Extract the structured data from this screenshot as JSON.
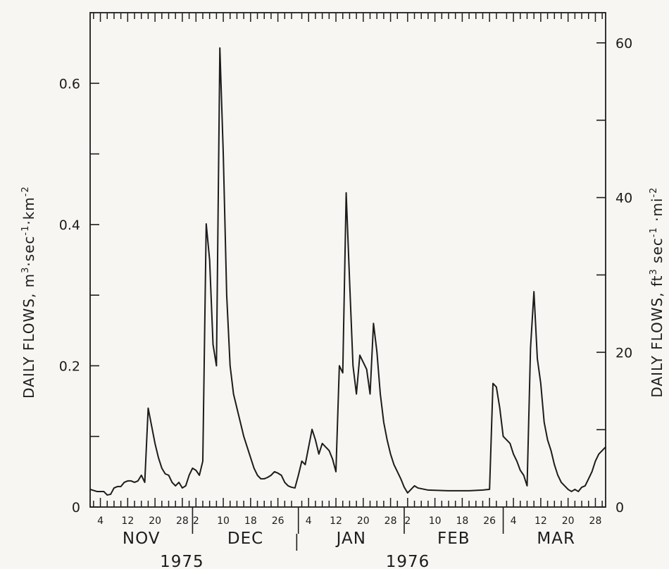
{
  "chart_data": {
    "type": "line",
    "title": "",
    "ylabel": "DAILY FLOWS, m³·sec⁻¹·km⁻²",
    "ylabel_parts": {
      "main": "DAILY FLOWS, m",
      "sup1": "3",
      "mid": "·sec",
      "sup2": "-1",
      "mid2": "·km",
      "sup3": "-2"
    },
    "y2label": "DAILY FLOWS, ft³·sec⁻¹·mi⁻²",
    "y2label_parts": {
      "main": "DAILY FLOWS, ft",
      "sup1": "3",
      "mid": " sec",
      "sup2": "-1",
      "mid2": " ·mi",
      "sup3": "-2"
    },
    "ylim": [
      0,
      0.7
    ],
    "y2lim": [
      0,
      63.9
    ],
    "y_ticks": [
      0,
      0.2,
      0.4,
      0.6
    ],
    "y_tick_labels": [
      "0",
      "0.2",
      "0.4",
      "0.6"
    ],
    "y2_ticks": [
      0,
      20,
      40,
      60
    ],
    "y2_tick_labels": [
      "0",
      "20",
      "40",
      "60"
    ],
    "xlim": [
      "1975-11-01",
      "1976-03-31"
    ],
    "months": [
      {
        "label": "NOV",
        "start": "1975-11-01",
        "end": "1975-11-30",
        "day_ticks": [
          4,
          12,
          20,
          28
        ]
      },
      {
        "label": "DEC",
        "start": "1975-12-01",
        "end": "1975-12-31",
        "day_ticks": [
          2,
          10,
          18,
          26
        ]
      },
      {
        "label": "JAN",
        "start": "1976-01-01",
        "end": "1976-01-31",
        "day_ticks": [
          4,
          12,
          20,
          28
        ]
      },
      {
        "label": "FEB",
        "start": "1976-02-01",
        "end": "1976-02-29",
        "day_ticks": [
          2,
          10,
          18,
          26
        ]
      },
      {
        "label": "MAR",
        "start": "1976-03-01",
        "end": "1976-03-31",
        "day_ticks": [
          4,
          12,
          20,
          28
        ]
      }
    ],
    "years": [
      {
        "label": "1975",
        "under": "1975-12-01"
      },
      {
        "label": "1976",
        "under": "1976-02-01"
      }
    ],
    "grid": false,
    "series": [
      {
        "color": "#1c1c1c",
        "points": [
          [
            "1975-11-01",
            0.025
          ],
          [
            "1975-11-03",
            0.022
          ],
          [
            "1975-11-05",
            0.022
          ],
          [
            "1975-11-06",
            0.017
          ],
          [
            "1975-11-07",
            0.018
          ],
          [
            "1975-11-08",
            0.027
          ],
          [
            "1975-11-09",
            0.029
          ],
          [
            "1975-11-10",
            0.029
          ],
          [
            "1975-11-11",
            0.035
          ],
          [
            "1975-11-12",
            0.037
          ],
          [
            "1975-11-13",
            0.037
          ],
          [
            "1975-11-14",
            0.035
          ],
          [
            "1975-11-15",
            0.037
          ],
          [
            "1975-11-16",
            0.045
          ],
          [
            "1975-11-17",
            0.035
          ],
          [
            "1975-11-18",
            0.14
          ],
          [
            "1975-11-19",
            0.115
          ],
          [
            "1975-11-20",
            0.09
          ],
          [
            "1975-11-21",
            0.07
          ],
          [
            "1975-11-22",
            0.055
          ],
          [
            "1975-11-23",
            0.047
          ],
          [
            "1975-11-24",
            0.045
          ],
          [
            "1975-11-25",
            0.035
          ],
          [
            "1975-11-26",
            0.03
          ],
          [
            "1975-11-27",
            0.035
          ],
          [
            "1975-11-28",
            0.027
          ],
          [
            "1975-11-29",
            0.03
          ],
          [
            "1975-11-30",
            0.045
          ],
          [
            "1975-12-01",
            0.055
          ],
          [
            "1975-12-02",
            0.052
          ],
          [
            "1975-12-03",
            0.045
          ],
          [
            "1975-12-04",
            0.065
          ],
          [
            "1975-12-05",
            0.401
          ],
          [
            "1975-12-06",
            0.35
          ],
          [
            "1975-12-07",
            0.23
          ],
          [
            "1975-12-08",
            0.2
          ],
          [
            "1975-12-09",
            0.65
          ],
          [
            "1975-12-10",
            0.5
          ],
          [
            "1975-12-11",
            0.3
          ],
          [
            "1975-12-12",
            0.2
          ],
          [
            "1975-12-13",
            0.16
          ],
          [
            "1975-12-14",
            0.14
          ],
          [
            "1975-12-15",
            0.12
          ],
          [
            "1975-12-16",
            0.1
          ],
          [
            "1975-12-17",
            0.085
          ],
          [
            "1975-12-18",
            0.07
          ],
          [
            "1975-12-19",
            0.055
          ],
          [
            "1975-12-20",
            0.045
          ],
          [
            "1975-12-21",
            0.04
          ],
          [
            "1975-12-22",
            0.04
          ],
          [
            "1975-12-23",
            0.042
          ],
          [
            "1975-12-24",
            0.045
          ],
          [
            "1975-12-25",
            0.05
          ],
          [
            "1975-12-26",
            0.048
          ],
          [
            "1975-12-27",
            0.045
          ],
          [
            "1975-12-28",
            0.035
          ],
          [
            "1975-12-29",
            0.03
          ],
          [
            "1975-12-30",
            0.028
          ],
          [
            "1975-12-31",
            0.027
          ],
          [
            "1976-01-01",
            0.045
          ],
          [
            "1976-01-02",
            0.065
          ],
          [
            "1976-01-03",
            0.06
          ],
          [
            "1976-01-04",
            0.085
          ],
          [
            "1976-01-05",
            0.11
          ],
          [
            "1976-01-06",
            0.095
          ],
          [
            "1976-01-07",
            0.075
          ],
          [
            "1976-01-08",
            0.09
          ],
          [
            "1976-01-09",
            0.085
          ],
          [
            "1976-01-10",
            0.08
          ],
          [
            "1976-01-11",
            0.068
          ],
          [
            "1976-01-12",
            0.05
          ],
          [
            "1976-01-13",
            0.2
          ],
          [
            "1976-01-14",
            0.19
          ],
          [
            "1976-01-15",
            0.445
          ],
          [
            "1976-01-16",
            0.32
          ],
          [
            "1976-01-17",
            0.2
          ],
          [
            "1976-01-18",
            0.16
          ],
          [
            "1976-01-19",
            0.215
          ],
          [
            "1976-01-20",
            0.205
          ],
          [
            "1976-01-21",
            0.195
          ],
          [
            "1976-01-22",
            0.16
          ],
          [
            "1976-01-23",
            0.26
          ],
          [
            "1976-01-24",
            0.22
          ],
          [
            "1976-01-25",
            0.16
          ],
          [
            "1976-01-26",
            0.12
          ],
          [
            "1976-01-27",
            0.095
          ],
          [
            "1976-01-28",
            0.075
          ],
          [
            "1976-01-29",
            0.06
          ],
          [
            "1976-01-30",
            0.05
          ],
          [
            "1976-01-31",
            0.04
          ],
          [
            "1976-02-01",
            0.028
          ],
          [
            "1976-02-02",
            0.02
          ],
          [
            "1976-02-03",
            0.025
          ],
          [
            "1976-02-04",
            0.03
          ],
          [
            "1976-02-05",
            0.027
          ],
          [
            "1976-02-08",
            0.024
          ],
          [
            "1976-02-14",
            0.023
          ],
          [
            "1976-02-20",
            0.023
          ],
          [
            "1976-02-24",
            0.024
          ],
          [
            "1976-02-26",
            0.025
          ],
          [
            "1976-02-27",
            0.175
          ],
          [
            "1976-02-28",
            0.17
          ],
          [
            "1976-02-29",
            0.14
          ],
          [
            "1976-03-01",
            0.1
          ],
          [
            "1976-03-03",
            0.09
          ],
          [
            "1976-03-04",
            0.075
          ],
          [
            "1976-03-05",
            0.065
          ],
          [
            "1976-03-06",
            0.052
          ],
          [
            "1976-03-07",
            0.045
          ],
          [
            "1976-03-08",
            0.03
          ],
          [
            "1976-03-09",
            0.225
          ],
          [
            "1976-03-10",
            0.305
          ],
          [
            "1976-03-11",
            0.21
          ],
          [
            "1976-03-12",
            0.175
          ],
          [
            "1976-03-13",
            0.12
          ],
          [
            "1976-03-14",
            0.095
          ],
          [
            "1976-03-15",
            0.08
          ],
          [
            "1976-03-16",
            0.06
          ],
          [
            "1976-03-17",
            0.045
          ],
          [
            "1976-03-18",
            0.035
          ],
          [
            "1976-03-19",
            0.03
          ],
          [
            "1976-03-20",
            0.025
          ],
          [
            "1976-03-21",
            0.022
          ],
          [
            "1976-03-22",
            0.025
          ],
          [
            "1976-03-23",
            0.022
          ],
          [
            "1976-03-24",
            0.028
          ],
          [
            "1976-03-25",
            0.03
          ],
          [
            "1976-03-26",
            0.04
          ],
          [
            "1976-03-27",
            0.05
          ],
          [
            "1976-03-28",
            0.065
          ],
          [
            "1976-03-29",
            0.075
          ],
          [
            "1976-03-30",
            0.08
          ],
          [
            "1976-03-31",
            0.085
          ]
        ]
      }
    ]
  }
}
